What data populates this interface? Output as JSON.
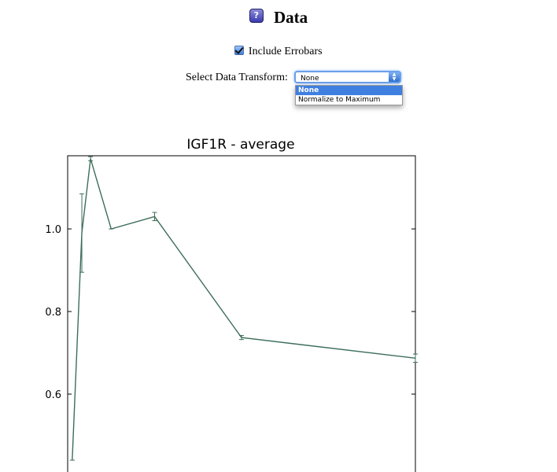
{
  "header": {
    "title": "Data",
    "help_icon_label": "?"
  },
  "controls": {
    "errorbars_label": "Include Errobars",
    "errorbars_checked": true,
    "transform_label": "Select Data Transform:",
    "transform_selected": "None",
    "transform_options": [
      "None",
      "Normalize to Maximum"
    ]
  },
  "chart_data": {
    "type": "line",
    "title": "IGF1R - average",
    "xlabel": "",
    "ylabel": "",
    "ylim": [
      0.42,
      1.17
    ],
    "yticks": [
      0.6,
      0.8,
      1.0
    ],
    "ytick_labels": [
      "0.6",
      "0.8",
      "1.0"
    ],
    "grid": false,
    "errorbars": true,
    "line_color": "#3d6e5a",
    "x": [
      0.0132,
      0.0408,
      0.0658,
      0.125,
      0.25,
      0.5,
      1.0
    ],
    "y": [
      0.44,
      0.99,
      1.17,
      1.0,
      1.03,
      0.737,
      0.687
    ],
    "yerr": [
      0.0,
      0.095,
      0.005,
      0.0,
      0.01,
      0.005,
      0.01
    ]
  }
}
